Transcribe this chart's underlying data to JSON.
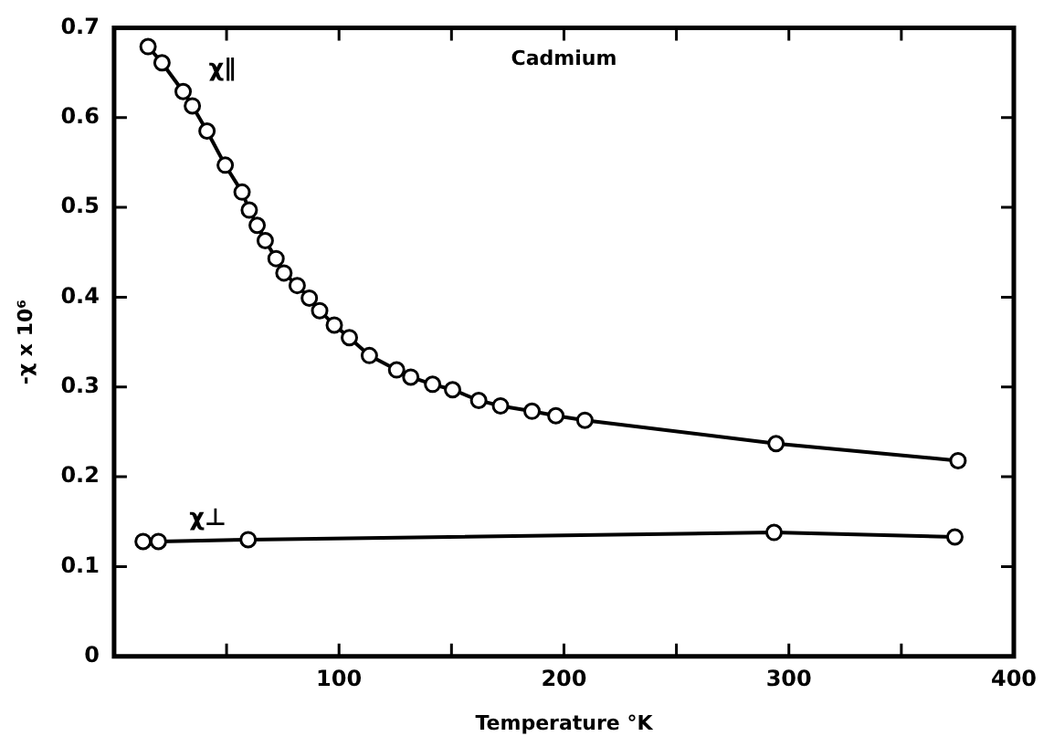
{
  "chart_data": {
    "type": "line",
    "title": "Cadmium",
    "xlabel": "Temperature °K",
    "ylabel": "-χ x 10⁶",
    "marker": "circle",
    "line_style": "solid",
    "xlim": [
      0,
      400
    ],
    "xticks": [
      {
        "value": 0,
        "label": null
      },
      {
        "value": 50,
        "label": null
      },
      100,
      {
        "value": 150,
        "label": null
      },
      200,
      {
        "value": 250,
        "label": null
      },
      300,
      {
        "value": 350,
        "label": null
      },
      400
    ],
    "ylim": [
      0,
      0.7
    ],
    "yticks": [
      0,
      0.1,
      0.2,
      0.3,
      0.4,
      0.5,
      0.6,
      0.7
    ],
    "series": [
      {
        "name": "χ∥",
        "color": "#000000",
        "x": [
          15.1,
          21.3,
          30.7,
          34.8,
          41.3,
          49.4,
          56.9,
          60.1,
          63.6,
          67.2,
          72,
          75.5,
          81.4,
          86.8,
          91.4,
          97.9,
          104.6,
          113.5,
          125.6,
          131.9,
          141.6,
          150.5,
          162.1,
          171.8,
          185.8,
          196.4,
          209.3,
          294.3,
          375.2
        ],
        "values": [
          0.679,
          0.661,
          0.629,
          0.613,
          0.585,
          0.547,
          0.517,
          0.497,
          0.48,
          0.463,
          0.443,
          0.427,
          0.413,
          0.399,
          0.385,
          0.369,
          0.355,
          0.335,
          0.319,
          0.311,
          0.303,
          0.297,
          0.285,
          0.279,
          0.273,
          0.268,
          0.263,
          0.237,
          0.218
        ]
      },
      {
        "name": "χ⊥",
        "color": "#000000",
        "x": [
          12.9,
          19.7,
          59.6,
          293.4,
          373.8
        ],
        "values": [
          0.128,
          0.128,
          0.13,
          0.138,
          0.133
        ]
      }
    ]
  }
}
